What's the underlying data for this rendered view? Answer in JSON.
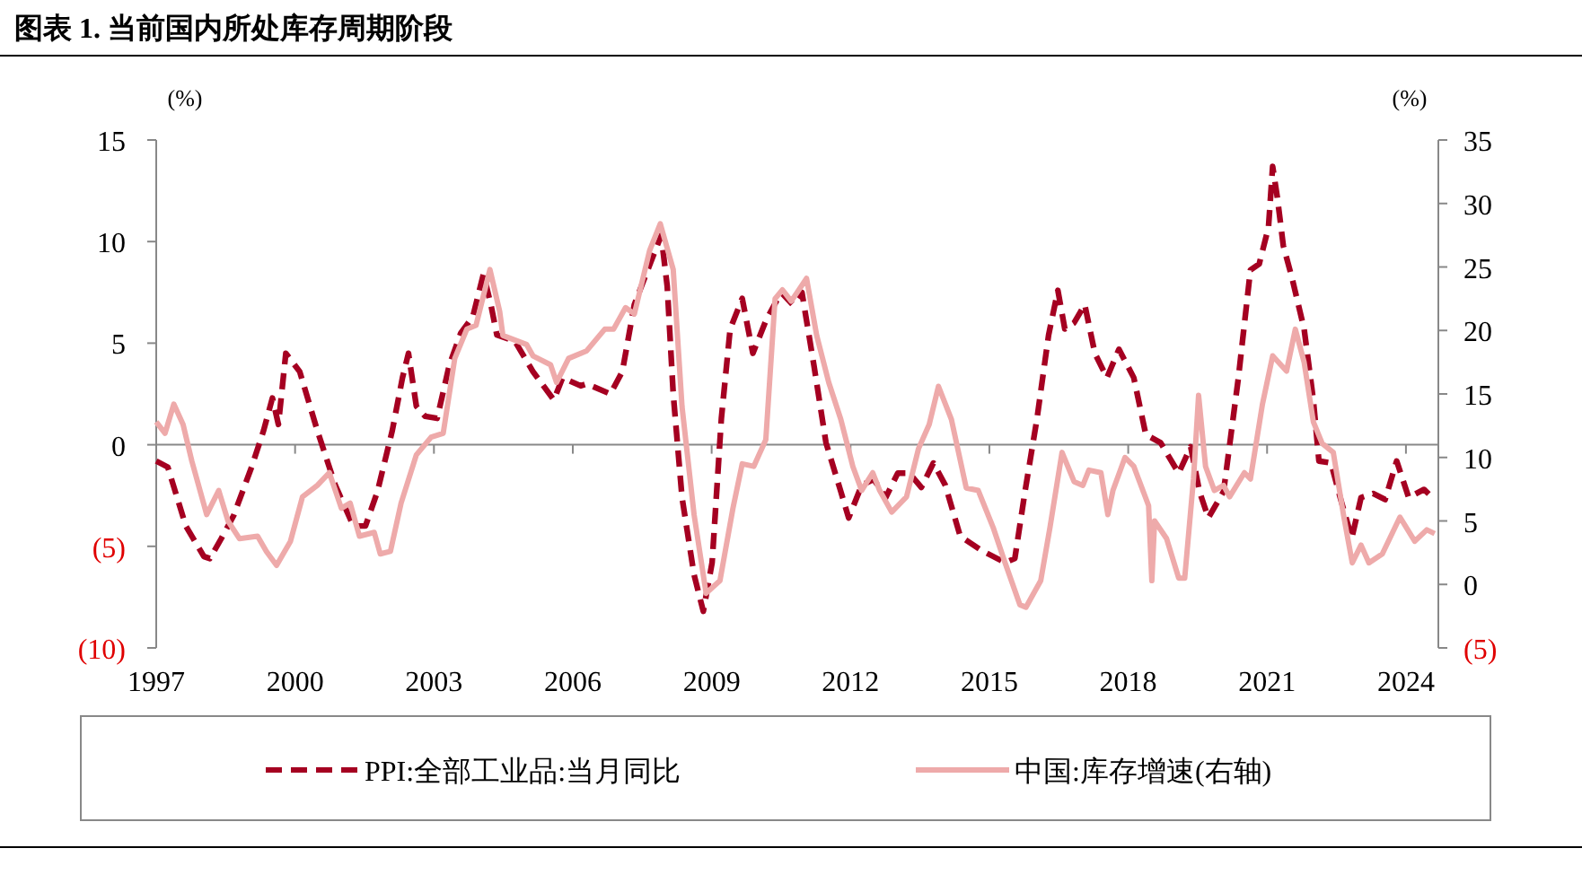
{
  "chart_data": {
    "type": "line",
    "title": "图表 1. 当前国内所处库存周期阶段",
    "ylabel": "(%)",
    "y2label": "(%)",
    "xlim": [
      1997,
      2024.7
    ],
    "xticks": [
      1997,
      2000,
      2003,
      2006,
      2009,
      2012,
      2015,
      2018,
      2021,
      2024
    ],
    "ylim": [
      -10,
      15
    ],
    "yticks": [
      {
        "value": -10,
        "label": "(10)"
      },
      {
        "value": -5,
        "label": "(5)"
      },
      0,
      5,
      10,
      15
    ],
    "y2lim": [
      -5,
      35
    ],
    "y2ticks": [
      {
        "value": -5,
        "label": "(5)"
      },
      0,
      5,
      10,
      15,
      20,
      25,
      30,
      35
    ],
    "legend": "bottom",
    "series": [
      {
        "name": "PPI:全部工业品:当月同比",
        "color": "#a50021",
        "line_style": "dashed",
        "x": [
          1997.0,
          1997.25,
          1997.64,
          1998.03,
          1998.16,
          1998.41,
          1998.67,
          1999.06,
          1999.32,
          1999.51,
          1999.64,
          1999.8,
          2000.1,
          2000.48,
          2000.87,
          2001.26,
          2001.52,
          2001.78,
          2002.1,
          2002.32,
          2002.45,
          2002.62,
          2002.81,
          2003.07,
          2003.33,
          2003.58,
          2003.84,
          2004.07,
          2004.23,
          2004.36,
          2004.75,
          2005.14,
          2005.59,
          2005.78,
          2006.17,
          2006.3,
          2006.81,
          2007.07,
          2007.33,
          2007.72,
          2007.91,
          2008.04,
          2008.17,
          2008.36,
          2008.62,
          2008.82,
          2009.01,
          2009.21,
          2009.4,
          2009.66,
          2009.89,
          2010.17,
          2010.5,
          2010.75,
          2010.95,
          2011.21,
          2011.47,
          2011.79,
          2011.96,
          2012.24,
          2012.5,
          2012.76,
          2013.02,
          2013.27,
          2013.53,
          2013.79,
          2014.05,
          2014.37,
          2014.83,
          2015.34,
          2015.55,
          2015.77,
          2016.03,
          2016.28,
          2016.48,
          2016.63,
          2016.83,
          2017.06,
          2017.28,
          2017.54,
          2017.8,
          2018.12,
          2018.38,
          2018.7,
          2019.09,
          2019.35,
          2019.54,
          2019.73,
          2020.06,
          2020.38,
          2020.64,
          2020.83,
          2021.03,
          2021.12,
          2021.22,
          2021.35,
          2021.54,
          2021.8,
          2022.0,
          2022.12,
          2022.38,
          2022.58,
          2022.83,
          2023.03,
          2023.29,
          2023.55,
          2023.8,
          2024.06,
          2024.39,
          2024.62
        ],
        "values": [
          -0.8,
          -1.1,
          -4.0,
          -5.5,
          -5.6,
          -4.6,
          -3.5,
          -1.1,
          0.7,
          2.3,
          1.0,
          4.5,
          3.6,
          0.7,
          -2.0,
          -4.0,
          -4.0,
          -2.3,
          0.7,
          3.3,
          4.5,
          1.9,
          1.4,
          1.3,
          3.9,
          5.5,
          6.3,
          8.4,
          6.9,
          5.4,
          5.1,
          3.6,
          2.2,
          3.3,
          2.9,
          3.0,
          2.5,
          3.6,
          6.9,
          9.2,
          10.3,
          7.8,
          2.5,
          -2.6,
          -6.4,
          -8.2,
          -5.8,
          1.3,
          5.7,
          7.2,
          4.5,
          6.1,
          7.5,
          6.9,
          7.5,
          3.9,
          0.1,
          -2.3,
          -3.6,
          -2.0,
          -1.7,
          -2.6,
          -1.4,
          -1.4,
          -2.1,
          -0.9,
          -2.0,
          -4.5,
          -5.2,
          -5.8,
          -5.6,
          -2.3,
          1.3,
          5.4,
          7.6,
          5.7,
          6.0,
          6.9,
          4.5,
          3.3,
          4.7,
          3.3,
          0.5,
          0.1,
          -1.4,
          -0.1,
          -2.3,
          -3.6,
          -2.3,
          3.3,
          8.6,
          8.9,
          10.7,
          13.7,
          12.2,
          9.8,
          8.2,
          5.7,
          2.2,
          -0.8,
          -0.9,
          -2.6,
          -4.6,
          -2.6,
          -2.4,
          -2.7,
          -0.8,
          -2.6,
          -2.2,
          -2.7
        ]
      },
      {
        "name": "中国:库存增速(右轴)",
        "color": "#eeaaaa",
        "line_style": "solid",
        "axis": "y2",
        "x": [
          1997.0,
          1997.19,
          1997.38,
          1997.58,
          1997.77,
          1998.09,
          1998.35,
          1998.55,
          1998.8,
          1999.19,
          1999.38,
          1999.6,
          1999.9,
          2000.16,
          2000.48,
          2000.74,
          2001.0,
          2001.19,
          2001.39,
          2001.71,
          2001.84,
          2002.06,
          2002.29,
          2002.62,
          2002.94,
          2003.2,
          2003.45,
          2003.71,
          2003.91,
          2004.21,
          2004.42,
          2004.49,
          2005.0,
          2005.14,
          2005.52,
          2005.65,
          2005.91,
          2006.3,
          2006.69,
          2006.88,
          2007.14,
          2007.33,
          2007.66,
          2007.89,
          2008.17,
          2008.36,
          2008.62,
          2008.88,
          2009.18,
          2009.46,
          2009.66,
          2009.91,
          2010.17,
          2010.37,
          2010.53,
          2010.72,
          2011.05,
          2011.27,
          2011.53,
          2011.79,
          2012.05,
          2012.24,
          2012.48,
          2012.63,
          2012.89,
          2013.21,
          2013.47,
          2013.7,
          2013.9,
          2014.18,
          2014.5,
          2014.76,
          2015.08,
          2015.34,
          2015.66,
          2015.79,
          2016.11,
          2016.31,
          2016.57,
          2016.83,
          2017.02,
          2017.15,
          2017.41,
          2017.56,
          2017.67,
          2017.93,
          2018.12,
          2018.44,
          2018.51,
          2018.57,
          2018.83,
          2019.09,
          2019.22,
          2019.41,
          2019.52,
          2019.67,
          2019.86,
          2020.06,
          2020.19,
          2020.51,
          2020.64,
          2020.9,
          2021.12,
          2021.42,
          2021.61,
          2021.8,
          2022.0,
          2022.19,
          2022.43,
          2022.65,
          2022.84,
          2023.03,
          2023.2,
          2023.49,
          2023.87,
          2024.19,
          2024.45,
          2024.62
        ],
        "values": [
          12.8,
          11.9,
          14.2,
          12.6,
          9.7,
          5.5,
          7.4,
          5.0,
          3.6,
          3.8,
          2.6,
          1.5,
          3.4,
          6.9,
          7.8,
          8.8,
          6.0,
          6.4,
          3.8,
          4.1,
          2.4,
          2.6,
          6.4,
          10.2,
          11.6,
          11.9,
          17.8,
          20.1,
          20.4,
          24.8,
          21.5,
          19.6,
          18.9,
          18.0,
          17.3,
          15.9,
          17.8,
          18.4,
          20.1,
          20.1,
          21.8,
          21.3,
          26.3,
          28.4,
          24.8,
          14.0,
          5.5,
          -0.7,
          0.3,
          6.0,
          9.5,
          9.3,
          11.4,
          22.5,
          23.2,
          22.3,
          24.1,
          19.6,
          15.9,
          13.0,
          9.3,
          7.4,
          8.8,
          7.4,
          5.7,
          6.9,
          10.7,
          12.6,
          15.6,
          13.0,
          7.6,
          7.4,
          4.5,
          1.7,
          -1.6,
          -1.8,
          0.3,
          4.5,
          10.4,
          8.1,
          7.8,
          9.0,
          8.8,
          5.5,
          7.4,
          10.0,
          9.3,
          6.2,
          0.3,
          5.0,
          3.6,
          0.5,
          0.5,
          8.3,
          14.9,
          9.3,
          7.4,
          7.8,
          6.9,
          8.8,
          8.3,
          14.2,
          18.0,
          16.8,
          20.1,
          17.5,
          12.8,
          11.1,
          10.4,
          5.5,
          1.7,
          3.1,
          1.7,
          2.4,
          5.3,
          3.4,
          4.3,
          4.0
        ]
      }
    ]
  }
}
